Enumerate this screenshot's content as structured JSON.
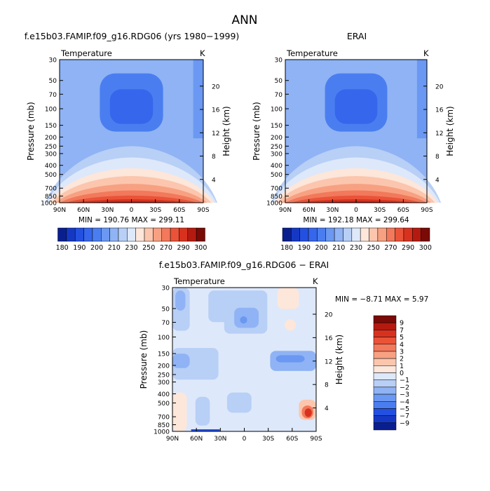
{
  "figure_title": "ANN",
  "chart_data": [
    {
      "type": "heatmap",
      "id": "model",
      "title": "f.e15b03.FAMIP.f09_g16.RDG06 (yrs 1980−1999)",
      "variable": "Temperature",
      "units": "K",
      "xlabel": "",
      "ylabel": "Pressure (mb)",
      "y2label": "Height (km)",
      "x_ticks": [
        "90N",
        "60N",
        "30N",
        "0",
        "30S",
        "60S",
        "90S"
      ],
      "y_ticks": [
        "30",
        "50",
        "70",
        "100",
        "150",
        "200",
        "250",
        "300",
        "400",
        "500",
        "700",
        "850",
        "1000"
      ],
      "y2_ticks": [
        "20",
        "16",
        "12",
        "8",
        "4"
      ],
      "min": 190.76,
      "max": 299.11,
      "stat_text": "MIN = 190.76   MAX = 299.11"
    },
    {
      "type": "heatmap",
      "id": "erai",
      "title": "ERAI",
      "variable": "Temperature",
      "units": "K",
      "xlabel": "",
      "ylabel": "Pressure (mb)",
      "y2label": "Height (km)",
      "x_ticks": [
        "90N",
        "60N",
        "30N",
        "0",
        "30S",
        "60S",
        "90S"
      ],
      "y_ticks": [
        "30",
        "50",
        "70",
        "100",
        "150",
        "200",
        "250",
        "300",
        "400",
        "500",
        "700",
        "850",
        "1000"
      ],
      "y2_ticks": [
        "20",
        "16",
        "12",
        "8",
        "4"
      ],
      "min": 192.18,
      "max": 299.64,
      "stat_text": "MIN = 192.18   MAX = 299.64"
    },
    {
      "type": "heatmap",
      "id": "diff",
      "title": "f.e15b03.FAMIP.f09_g16.RDG06 − ERAI",
      "variable": "Temperature",
      "units": "K",
      "xlabel": "",
      "ylabel": "Pressure (mb)",
      "y2label": "Height (km)",
      "x_ticks": [
        "90N",
        "60N",
        "30N",
        "0",
        "30S",
        "60S",
        "90S"
      ],
      "y_ticks": [
        "30",
        "50",
        "70",
        "100",
        "150",
        "200",
        "250",
        "300",
        "400",
        "500",
        "700",
        "850",
        "1000"
      ],
      "y2_ticks": [
        "20",
        "16",
        "12",
        "8",
        "4"
      ],
      "min": -8.71,
      "max": 5.97,
      "stat_text": "MIN =   −8.71    MAX =    5.97"
    }
  ],
  "colorbars": {
    "abs": {
      "labels": [
        "180",
        "190",
        "200",
        "210",
        "230",
        "250",
        "270",
        "290",
        "300"
      ],
      "colors": [
        "#0a1f8f",
        "#1538c4",
        "#2350e0",
        "#3566ec",
        "#4a7ef0",
        "#6a98f2",
        "#8fb3f4",
        "#b8cff6",
        "#dde8fa",
        "#fde6da",
        "#fbc6ad",
        "#f7a182",
        "#f2795b",
        "#ea5338",
        "#d8321f",
        "#b41a10",
        "#7a0a06"
      ]
    },
    "diff": {
      "labels": [
        "9",
        "7",
        "5",
        "4",
        "3",
        "2",
        "1",
        "0",
        "−1",
        "−2",
        "−3",
        "−4",
        "−5",
        "−7",
        "−9"
      ],
      "colors": [
        "#7a0a06",
        "#b41a10",
        "#d8321f",
        "#ea5338",
        "#f2795b",
        "#f7a182",
        "#fbc6ad",
        "#fde6da",
        "#dde8fa",
        "#b8cff6",
        "#8fb3f4",
        "#6a98f2",
        "#4a7ef0",
        "#2350e0",
        "#1538c4",
        "#0a1f8f"
      ]
    }
  }
}
